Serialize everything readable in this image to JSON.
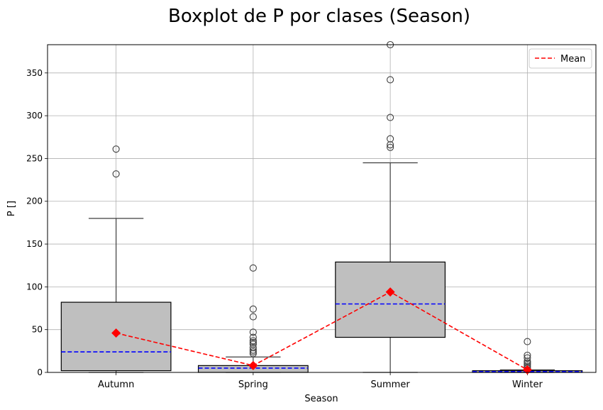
{
  "chart_data": {
    "type": "box",
    "title": "Boxplot de P por clases (Season)",
    "xlabel": "Season",
    "ylabel": "P []",
    "ylim": [
      0,
      383
    ],
    "yticks": [
      0,
      50,
      100,
      150,
      200,
      250,
      300,
      350
    ],
    "grid": true,
    "legend": {
      "placement": "top-right",
      "entries": [
        "Mean"
      ]
    },
    "colors": {
      "box_fill": "#bfbfbf",
      "median": "#0000ff",
      "mean": "#ff0000"
    },
    "categories": [
      "Autumn",
      "Spring",
      "Summer",
      "Winter"
    ],
    "boxes": [
      {
        "category": "Autumn",
        "whisker_low": 0,
        "q1": 2,
        "median": 24,
        "q3": 82,
        "whisker_high": 180,
        "mean": 46,
        "outliers": [
          232,
          261
        ]
      },
      {
        "category": "Spring",
        "whisker_low": 0,
        "q1": 0,
        "median": 5,
        "q3": 8,
        "whisker_high": 18,
        "mean": 8,
        "outliers": [
          22,
          24,
          26,
          29,
          33,
          35,
          37,
          41,
          47,
          65,
          74,
          122
        ]
      },
      {
        "category": "Summer",
        "whisker_low": 0,
        "q1": 41,
        "median": 80,
        "q3": 129,
        "whisker_high": 245,
        "mean": 94,
        "outliers": [
          263,
          266,
          273,
          298,
          342,
          383
        ]
      },
      {
        "category": "Winter",
        "whisker_low": 0,
        "q1": 0,
        "median": 1,
        "q3": 2,
        "whisker_high": 3,
        "mean": 3,
        "outliers": [
          5,
          7,
          9,
          11,
          13,
          17,
          20,
          36
        ]
      }
    ]
  }
}
